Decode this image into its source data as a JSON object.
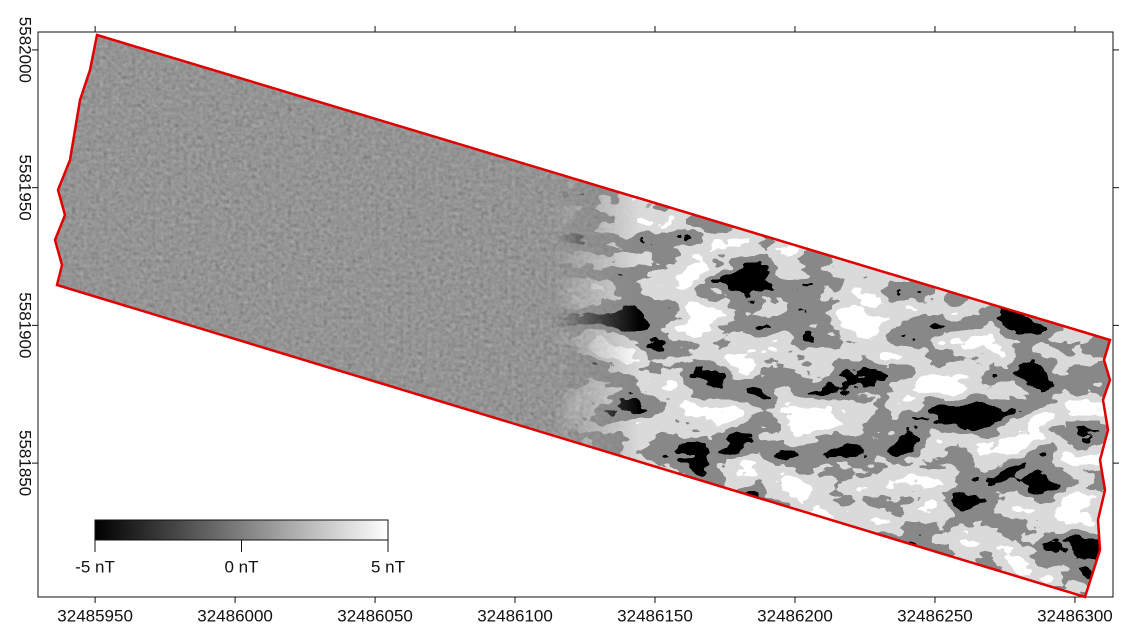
{
  "map": {
    "xlim": [
      32485929.6,
      32486313.6
    ],
    "ylim": [
      5581801.4,
      5582006.5
    ],
    "xticks": [
      32485950,
      32486000,
      32486050,
      32486100,
      32486150,
      32486200,
      32486250,
      32486300
    ],
    "yticks": [
      5581850,
      5581900,
      5581950,
      5582000
    ],
    "colorbar": {
      "lim": [
        -5,
        5
      ],
      "ticks": [
        {
          "value": -5,
          "label": "-5 nT"
        },
        {
          "value": 0,
          "label": "0 nT"
        },
        {
          "value": 5,
          "label": "5 nT"
        }
      ]
    },
    "outline_color": "#e00000"
  }
}
